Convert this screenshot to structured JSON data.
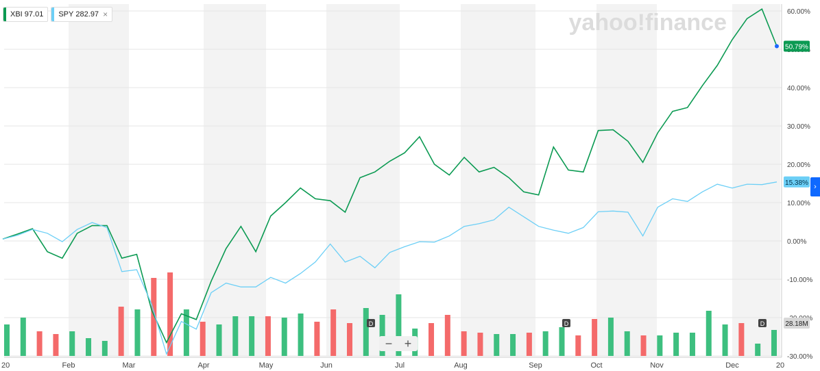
{
  "legend": [
    {
      "symbol": "XBI",
      "value": "97.01",
      "color": "#0b9a52"
    },
    {
      "symbol": "SPY",
      "value": "282.97",
      "color": "#6ccff6"
    }
  ],
  "legend_close": "×",
  "watermark": "yahoo!finance",
  "zoom": {
    "minus": "−",
    "plus": "+"
  },
  "expand_arrow": "›",
  "event_marker": "D",
  "volume_label": "28.18M",
  "colors": {
    "xbi": "#0b9a52",
    "spy": "#6ccff6",
    "vol_up": "#3dbf7f",
    "vol_down": "#f46a6a",
    "band": "#f3f3f3",
    "grid": "#e6e6e6"
  },
  "chart_data": {
    "type": "line",
    "title": "",
    "x_tick_labels": [
      "20",
      "Feb",
      "Mar",
      "Apr",
      "May",
      "Jun",
      "Jul",
      "Aug",
      "Sep",
      "Oct",
      "Nov",
      "Dec",
      "20"
    ],
    "y_tick_labels": [
      "60.00%",
      "50.00%",
      "40.00%",
      "30.00%",
      "20.00%",
      "10.00%",
      "0.00%",
      "-10.00%",
      "-20.00%",
      "-30.00%"
    ],
    "ylim": [
      -30,
      60
    ],
    "y_unit": "%",
    "series": [
      {
        "name": "XBI",
        "last_label": "50.79%",
        "values": [
          0.5,
          1.8,
          3.2,
          -2.8,
          -4.5,
          2.0,
          4.0,
          4.0,
          -4.5,
          -3.5,
          -18.0,
          -26.5,
          -19.0,
          -20.5,
          -10.5,
          -2.0,
          3.8,
          -2.8,
          6.5,
          10.0,
          13.8,
          11.0,
          10.5,
          7.5,
          16.5,
          18.0,
          20.8,
          23.0,
          27.2,
          20.0,
          17.2,
          21.8,
          18.0,
          19.2,
          16.5,
          12.8,
          12.0,
          24.5,
          18.5,
          18.0,
          28.8,
          29.0,
          26.0,
          20.5,
          28.2,
          33.8,
          34.8,
          40.5,
          45.8,
          52.5,
          58.0,
          60.5,
          50.8
        ]
      },
      {
        "name": "SPY",
        "last_label": "15.38%",
        "values": [
          0.5,
          1.5,
          3.0,
          2.0,
          -0.2,
          3.0,
          4.8,
          3.5,
          -8.0,
          -7.5,
          -16.5,
          -29.5,
          -21.0,
          -23.0,
          -13.5,
          -11.0,
          -12.0,
          -12.0,
          -9.5,
          -11.0,
          -8.5,
          -5.5,
          -0.8,
          -5.5,
          -4.0,
          -7.0,
          -3.0,
          -1.5,
          -0.2,
          -0.3,
          1.3,
          3.8,
          4.5,
          5.5,
          8.8,
          6.3,
          3.8,
          2.8,
          2.0,
          3.5,
          7.6,
          7.8,
          7.5,
          1.3,
          8.8,
          11.0,
          10.3,
          12.8,
          14.8,
          13.8,
          14.8,
          14.7,
          15.4
        ]
      }
    ],
    "volume": {
      "last_label": "28.18M",
      "up": [
        true,
        true,
        false,
        false,
        true,
        true,
        true,
        false,
        true,
        false,
        false,
        true,
        false,
        true,
        true,
        true,
        false,
        true,
        true,
        false,
        false,
        false,
        true,
        true,
        true,
        true,
        false,
        false,
        false,
        false,
        true,
        true,
        false,
        true,
        true,
        false,
        false,
        true,
        true,
        false,
        true,
        true,
        true,
        true,
        true,
        false,
        true,
        true
      ]
    }
  }
}
